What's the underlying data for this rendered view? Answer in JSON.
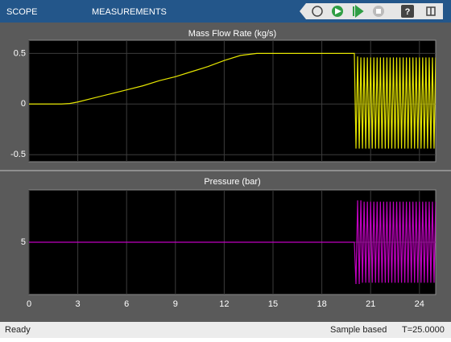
{
  "toolbar": {
    "tabs": [
      "SCOPE",
      "MEASUREMENTS"
    ]
  },
  "chart_data": [
    {
      "type": "line",
      "title": "Mass Flow Rate (kg/s)",
      "x": [
        0,
        1,
        2,
        2.5,
        3,
        4,
        5,
        6,
        7,
        8,
        9,
        10,
        11,
        12,
        13,
        14,
        20,
        20.1,
        20.2,
        20.3,
        20.4,
        20.5,
        20.6,
        20.7,
        20.8,
        20.9,
        21,
        21.1,
        21.2,
        21.3,
        21.4,
        21.5,
        21.6,
        21.7,
        21.8,
        21.9,
        22,
        22.1,
        22.2,
        22.3,
        22.4,
        22.5,
        22.6,
        22.7,
        22.8,
        22.9,
        23,
        23.1,
        23.2,
        23.3,
        23.4,
        23.5,
        23.6,
        23.7,
        23.8,
        23.9,
        24,
        24.1,
        24.2,
        24.3,
        24.4,
        24.5,
        24.6,
        24.7,
        24.8,
        24.9,
        25
      ],
      "values": [
        0,
        0,
        0,
        0.005,
        0.02,
        0.06,
        0.1,
        0.14,
        0.18,
        0.23,
        0.27,
        0.32,
        0.37,
        0.43,
        0.48,
        0.5,
        0.5,
        -0.44,
        0.47,
        -0.44,
        0.46,
        -0.44,
        0.46,
        -0.44,
        0.46,
        -0.44,
        0.46,
        -0.44,
        0.46,
        -0.44,
        0.46,
        -0.44,
        0.46,
        -0.44,
        0.46,
        -0.44,
        0.46,
        -0.44,
        0.46,
        -0.44,
        0.46,
        -0.44,
        0.46,
        -0.44,
        0.46,
        -0.44,
        0.46,
        -0.44,
        0.46,
        -0.44,
        0.46,
        -0.44,
        0.46,
        -0.44,
        0.46,
        -0.44,
        0.46,
        -0.44,
        0.46,
        -0.44,
        0.46,
        -0.44,
        0.46,
        -0.44,
        0.46,
        -0.44,
        0.46
      ],
      "color": "#e6e600",
      "xlim": [
        0,
        25
      ],
      "xticks": [
        0,
        3,
        6,
        9,
        12,
        15,
        18,
        21,
        24
      ],
      "ylim": [
        -0.57,
        0.63
      ],
      "yticks": [
        -0.5,
        0,
        0.5
      ],
      "grid": true
    },
    {
      "type": "line",
      "title": "Pressure (bar)",
      "x": [
        0,
        20,
        20.1,
        20.2,
        20.3,
        20.4,
        20.5,
        20.6,
        20.7,
        20.8,
        20.9,
        21,
        21.1,
        21.2,
        21.3,
        21.4,
        21.5,
        21.6,
        21.7,
        21.8,
        21.9,
        22,
        22.1,
        22.2,
        22.3,
        22.4,
        22.5,
        22.6,
        22.7,
        22.8,
        22.9,
        23,
        23.1,
        23.2,
        23.3,
        23.4,
        23.5,
        23.6,
        23.7,
        23.8,
        23.9,
        24,
        24.1,
        24.2,
        24.3,
        24.4,
        24.5,
        24.6,
        24.7,
        24.8,
        24.9,
        25
      ],
      "values": [
        5,
        5,
        1.8,
        8.2,
        1.8,
        8.2,
        1.9,
        8.1,
        1.9,
        8.1,
        1.9,
        8.1,
        1.9,
        8.1,
        1.9,
        8.1,
        1.9,
        8.1,
        1.9,
        8.1,
        1.9,
        8.1,
        1.9,
        8.1,
        1.9,
        8.1,
        1.9,
        8.1,
        1.9,
        8.1,
        1.9,
        8.1,
        1.9,
        8.1,
        1.9,
        8.1,
        1.9,
        8.1,
        1.9,
        8.1,
        1.9,
        8.1,
        1.9,
        8.1,
        1.9,
        8.1,
        1.9,
        8.1,
        1.9,
        8.1,
        1.9,
        8.1
      ],
      "color": "#c000c0",
      "xlim": [
        0,
        25
      ],
      "xticks": [
        0,
        3,
        6,
        9,
        12,
        15,
        18,
        21,
        24
      ],
      "ylim": [
        1,
        9
      ],
      "yticks": [
        5
      ],
      "grid": true
    }
  ],
  "status": {
    "state": "Ready",
    "mode": "Sample based",
    "time": "T=25.0000"
  }
}
